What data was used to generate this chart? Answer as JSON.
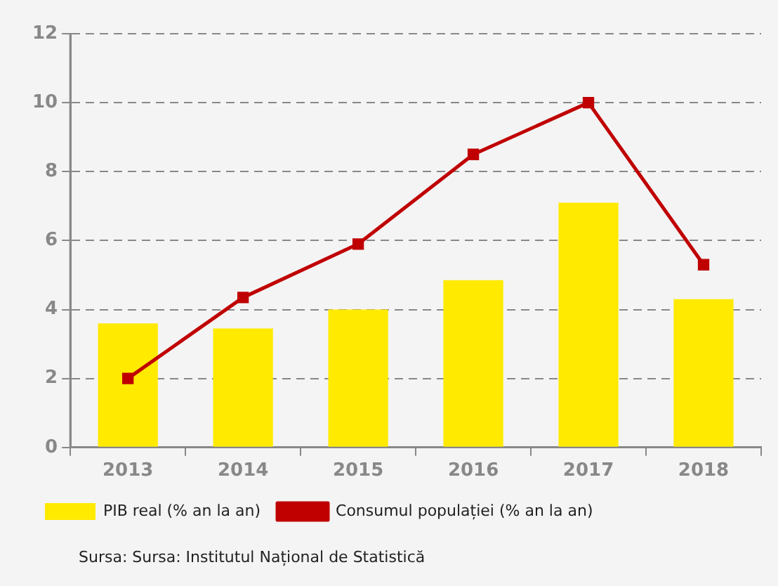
{
  "chart_data": {
    "type": "bar",
    "categories": [
      "2013",
      "2014",
      "2015",
      "2016",
      "2017",
      "2018"
    ],
    "series": [
      {
        "name": "PIB real (% an la an)",
        "color": "#ffea00",
        "values": [
          3.6,
          3.45,
          4.0,
          4.85,
          7.1,
          4.3
        ]
      },
      {
        "name": "Consumul populației (% an la an)",
        "type": "line",
        "color": "#c00000",
        "values": [
          2.0,
          4.35,
          5.9,
          8.5,
          10.0,
          5.3
        ]
      }
    ],
    "ylim": [
      0,
      12
    ],
    "yticks": [
      0,
      2,
      4,
      6,
      8,
      10,
      12
    ],
    "grid": "y",
    "legend": "bottom left",
    "marker": "square",
    "line_style": "solid",
    "annotations": [
      "Sursa: Sursa: Institutul Național de Statistică"
    ]
  }
}
